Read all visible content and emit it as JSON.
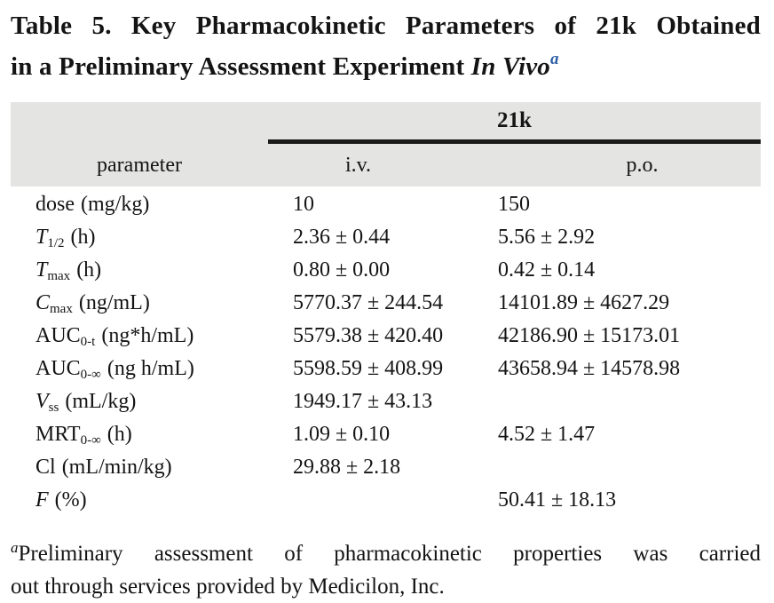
{
  "title": {
    "line1": "Table 5. Key Pharmacokinetic Parameters of 21k Obtained",
    "line2_prefix": "in a Preliminary Assessment Experiment ",
    "line2_italic": "In Vivo",
    "line2_superscript": "a"
  },
  "table": {
    "group_header": "21k",
    "columns": [
      "parameter",
      "i.v.",
      "p.o."
    ],
    "rows": [
      {
        "label": {
          "base": "dose",
          "sub": "",
          "unit": "(mg/kg)"
        },
        "iv": "10",
        "po": "150"
      },
      {
        "label": {
          "base": "T",
          "sub": "1/2",
          "unit": "(h)"
        },
        "iv": "2.36 ± 0.44",
        "po": "5.56 ± 2.92"
      },
      {
        "label": {
          "base": "T",
          "sub": "max",
          "unit": "(h)"
        },
        "iv": "0.80 ± 0.00",
        "po": "0.42 ± 0.14"
      },
      {
        "label": {
          "base": "C",
          "sub": "max",
          "unit": "(ng/mL)"
        },
        "iv": "5770.37 ± 244.54",
        "po": "14101.89 ± 4627.29"
      },
      {
        "label": {
          "base": "AUC",
          "sub": "0-t",
          "unit": "(ng*h/mL)"
        },
        "iv": "5579.38 ± 420.40",
        "po": "42186.90 ± 15173.01"
      },
      {
        "label": {
          "base": "AUC",
          "sub": "0-∞",
          "unit": "(ng h/mL)"
        },
        "iv": "5598.59 ± 408.99",
        "po": "43658.94 ± 14578.98"
      },
      {
        "label": {
          "base": "V",
          "sub": "ss",
          "unit": "(mL/kg)"
        },
        "iv": "1949.17 ± 43.13",
        "po": ""
      },
      {
        "label": {
          "base": "MRT",
          "sub": "0-∞",
          "unit": "(h)"
        },
        "iv": "1.09 ± 0.10",
        "po": "4.52 ± 1.47"
      },
      {
        "label": {
          "base": "Cl",
          "sub": "",
          "unit": "(mL/min/kg)"
        },
        "iv": "29.88 ± 2.18",
        "po": ""
      },
      {
        "label": {
          "base": "F",
          "sub": "",
          "unit": "(%)"
        },
        "iv": "",
        "po": "50.41 ± 18.13"
      }
    ]
  },
  "footnote": {
    "superscript": "a",
    "line1_rest": "Preliminary assessment of pharmacokinetic properties was carried",
    "line2": "out through services provided by Medicilon, Inc."
  },
  "colors": {
    "header_band": "#e4e4e3",
    "group_rule": "#1b1b1b",
    "title_superscript_blue": "#2d5fa6",
    "text": "#141414"
  }
}
